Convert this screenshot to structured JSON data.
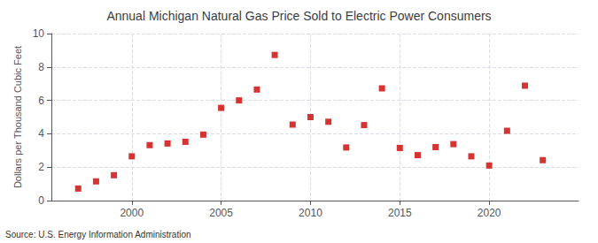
{
  "chart_data": {
    "type": "scatter",
    "title": "Annual Michigan Natural Gas Price Sold to Electric Power Consumers",
    "ylabel": "Dollars per Thousand Cubic Feet",
    "annotation": "Source: U.S. Energy Information Administration",
    "x": [
      1997,
      1998,
      1999,
      2000,
      2001,
      2002,
      2003,
      2004,
      2005,
      2006,
      2007,
      2008,
      2009,
      2010,
      2011,
      2012,
      2013,
      2014,
      2015,
      2016,
      2017,
      2018,
      2019,
      2020,
      2021,
      2022,
      2023
    ],
    "values": [
      0.72,
      1.15,
      1.52,
      2.65,
      3.32,
      3.42,
      3.52,
      3.95,
      5.55,
      6.0,
      6.65,
      8.72,
      4.55,
      5.0,
      4.72,
      3.18,
      4.52,
      6.72,
      3.15,
      2.72,
      3.2,
      3.38,
      2.65,
      2.1,
      4.18,
      6.88,
      2.42
    ],
    "color": "#cc0000",
    "marker": "square",
    "xlim": [
      1995.5,
      2025
    ],
    "xticks": [
      2000,
      2005,
      2010,
      2015,
      2020
    ],
    "ylim": [
      0,
      10
    ],
    "yticks": [
      0,
      2,
      4,
      6,
      8,
      10
    ],
    "grid": true
  }
}
